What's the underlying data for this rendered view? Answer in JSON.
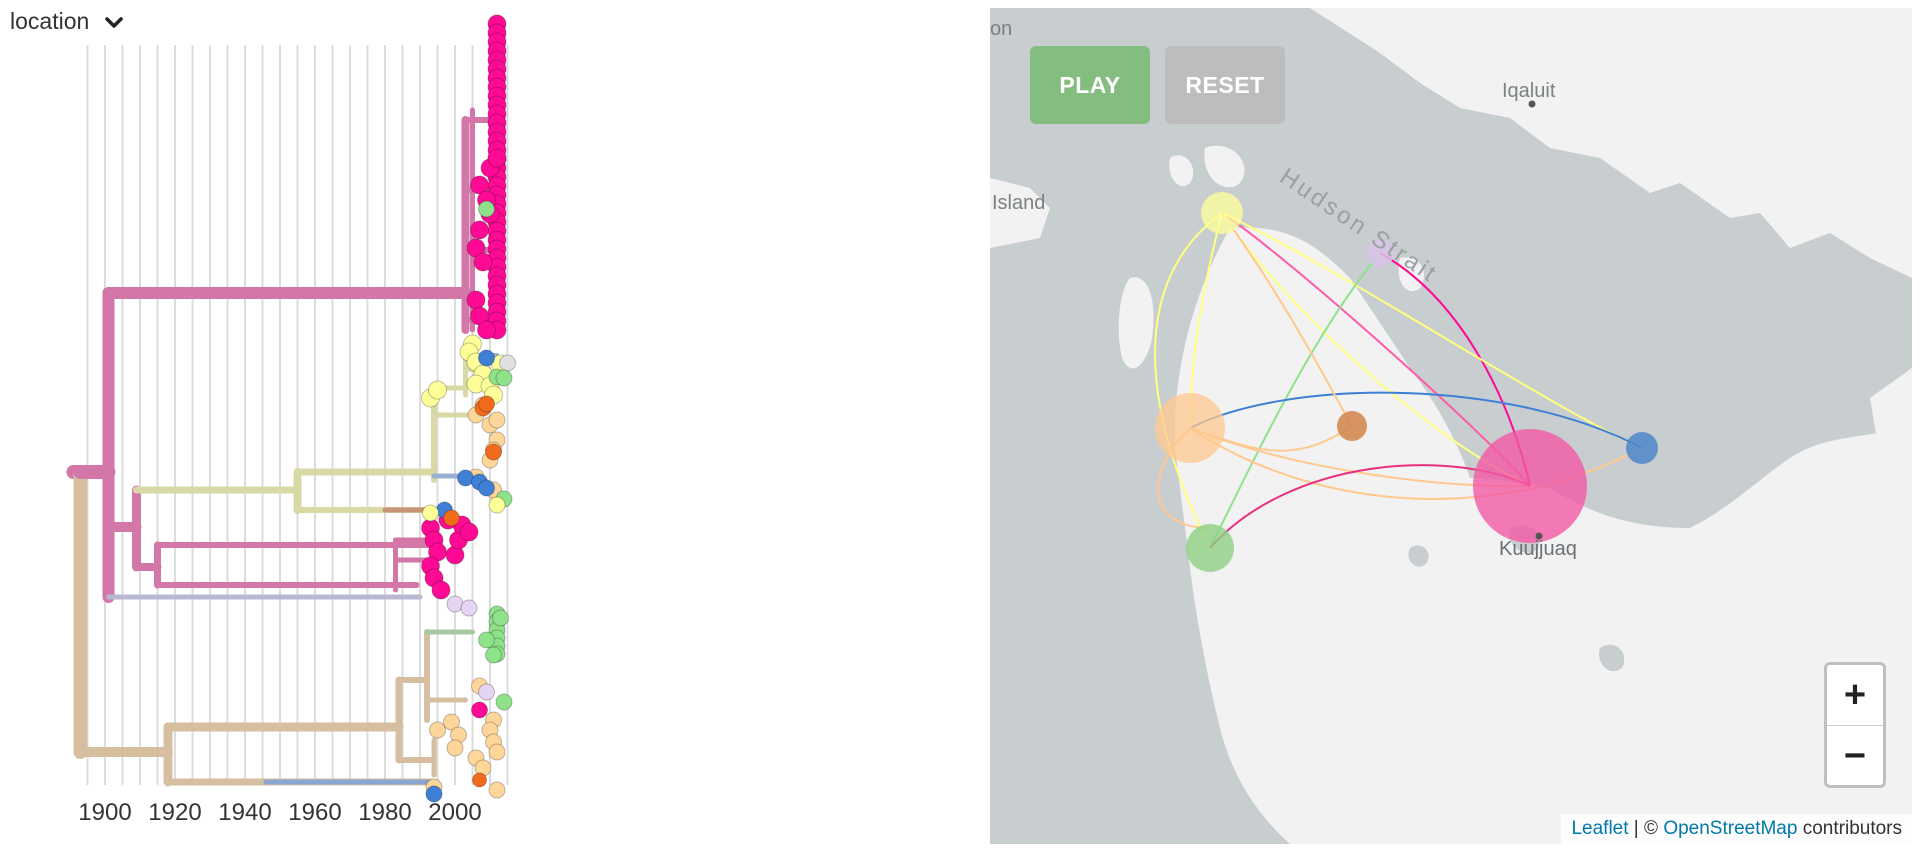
{
  "controls": {
    "color_by_label": "location"
  },
  "tree": {
    "x_ticks": [
      "1900",
      "1920",
      "1940",
      "1960",
      "1980",
      "2000"
    ],
    "x_tick_years": [
      1900,
      1920,
      1940,
      1960,
      1980,
      2000
    ]
  },
  "map": {
    "play_label": "PLAY",
    "reset_label": "RESET",
    "zoom_in_label": "+",
    "zoom_out_label": "−",
    "labels": {
      "hudson_strait": "Hudson Strait",
      "iqaluit": "Iqaluit",
      "kuujjuaq": "Kuujjuaq",
      "island": "Island",
      "on": "on"
    },
    "attribution": {
      "leaflet": "Leaflet",
      "sep": " | © ",
      "osm": "OpenStreetMap",
      "suffix": " contributors"
    }
  },
  "colors": {
    "magenta": "#ff0a95",
    "pink_branch": "#d376a8",
    "tan_branch": "#d6bfa1",
    "olive_branch": "#d9d9a6",
    "light_yellow": "#ffff99",
    "peach": "#ffd699",
    "orange": "#f26b1d",
    "blue": "#3f7fd6",
    "green": "#8ee38a",
    "lavender": "#e6d5f2",
    "map_land": "#f2f2f2",
    "map_water": "#c8cdcf"
  }
}
